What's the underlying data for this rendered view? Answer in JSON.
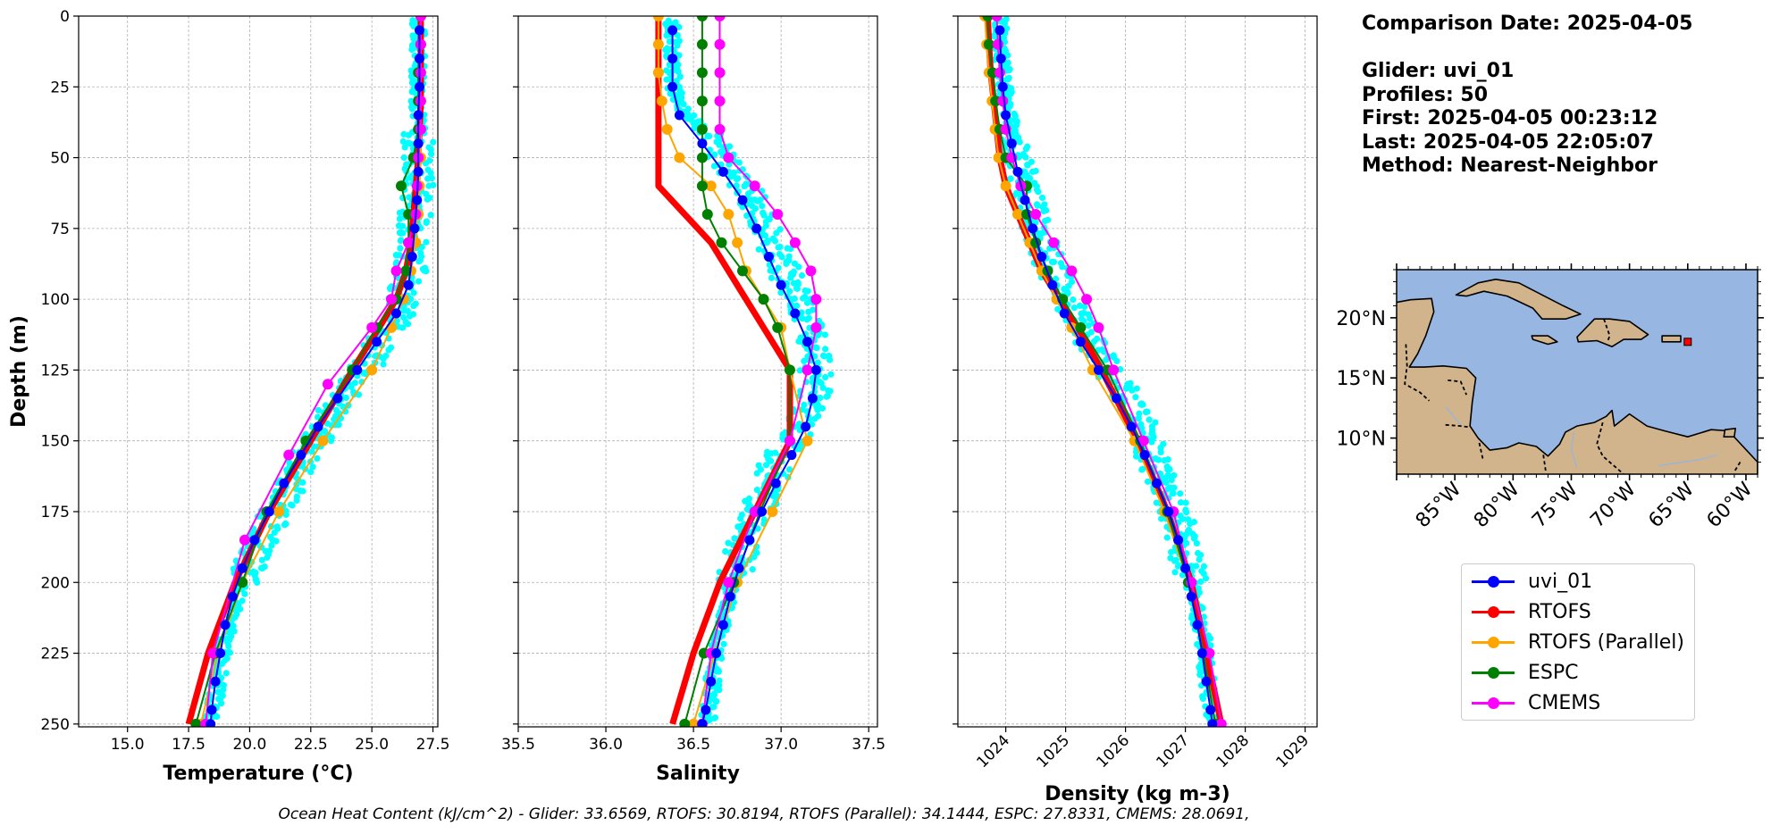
{
  "info": {
    "comparison": "Comparison Date: 2025-04-05",
    "glider": "Glider: uvi_01",
    "profiles": "Profiles: 50",
    "first": "First: 2025-04-05 00:23:12",
    "last": "Last: 2025-04-05 22:05:07",
    "method": "Method: Nearest-Neighbor"
  },
  "footer": "Ocean Heat Content (kJ/cm^2) - Glider: 33.6569,  RTOFS: 30.8194,  RTOFS (Parallel): 34.1444,  ESPC: 27.8331,  CMEMS: 28.0691,",
  "legend": [
    {
      "name": "uvi_01",
      "color": "#0000ff"
    },
    {
      "name": "RTOFS",
      "color": "#ff0000"
    },
    {
      "name": "RTOFS (Parallel)",
      "color": "#ffa500"
    },
    {
      "name": "ESPC",
      "color": "#008000"
    },
    {
      "name": "CMEMS",
      "color": "#ff00ff"
    }
  ],
  "colors": {
    "glider_scatter": "#00ffff",
    "ocean": "#98b6e2",
    "land": "#d2b48c"
  },
  "map": {
    "lat_ticks": [
      "10°N",
      "15°N",
      "20°N"
    ],
    "lon_ticks": [
      "85°W",
      "80°W",
      "75°W",
      "70°W",
      "65°W",
      "60°W"
    ],
    "extent": {
      "lon": [
        -90,
        -59
      ],
      "lat": [
        7,
        24
      ]
    },
    "glider_position": {
      "lon": -65,
      "lat": 18
    }
  },
  "chart_data": [
    {
      "type": "line",
      "xlabel": "Temperature (°C)",
      "ylabel": "Depth (m)",
      "xlim": [
        13,
        27.7
      ],
      "ylim": [
        251,
        0
      ],
      "xticks": [
        "15.0",
        "17.5",
        "20.0",
        "22.5",
        "25.0",
        "27.5"
      ],
      "xtick_values": [
        15,
        17.5,
        20,
        22.5,
        25,
        27.5
      ],
      "yticks": [
        "0",
        "25",
        "50",
        "75",
        "100",
        "125",
        "150",
        "175",
        "200",
        "225",
        "250"
      ],
      "ytick_values": [
        0,
        25,
        50,
        75,
        100,
        125,
        150,
        175,
        200,
        225,
        250
      ],
      "grid": true,
      "depth": [
        0,
        10,
        20,
        30,
        40,
        50,
        60,
        70,
        80,
        90,
        100,
        110,
        120,
        130,
        140,
        150,
        160,
        170,
        180,
        190,
        200,
        210,
        220,
        230,
        240,
        250
      ],
      "glider_scatter": [
        26.9,
        26.9,
        26.9,
        26.9,
        26.9,
        26.9,
        26.9,
        26.8,
        26.7,
        26.6,
        26.3,
        25.8,
        25.0,
        24.2,
        23.4,
        22.7,
        22.0,
        21.4,
        20.8,
        20.2,
        19.7,
        19.3,
        19.0,
        18.8,
        18.6,
        18.4
      ],
      "series": [
        {
          "name": "uvi_01",
          "depth": [
            5,
            15,
            25,
            35,
            45,
            55,
            65,
            75,
            85,
            95,
            105,
            115,
            125,
            135,
            145,
            155,
            165,
            175,
            185,
            195,
            205,
            215,
            225,
            235,
            245,
            250
          ],
          "values": [
            26.95,
            26.95,
            26.95,
            26.9,
            26.9,
            26.9,
            26.85,
            26.75,
            26.65,
            26.5,
            26.0,
            25.2,
            24.4,
            23.6,
            22.8,
            22.1,
            21.4,
            20.8,
            20.2,
            19.7,
            19.3,
            19.0,
            18.8,
            18.6,
            18.45,
            18.4
          ]
        },
        {
          "name": "RTOFS",
          "depth": [
            0,
            10,
            20,
            30,
            40,
            50,
            60,
            70,
            80,
            90,
            100,
            110,
            125,
            150,
            175,
            200,
            225,
            250
          ],
          "values": [
            27.0,
            27.0,
            27.0,
            27.0,
            26.95,
            26.9,
            26.8,
            26.7,
            26.6,
            26.4,
            26.0,
            25.3,
            24.2,
            22.5,
            20.8,
            19.4,
            18.3,
            17.5
          ]
        },
        {
          "name": "RTOFS (Parallel)",
          "depth": [
            0,
            10,
            20,
            30,
            40,
            50,
            60,
            70,
            80,
            90,
            100,
            110,
            125,
            150,
            175,
            200,
            225,
            250
          ],
          "values": [
            27.0,
            27.0,
            27.0,
            27.0,
            27.0,
            27.0,
            26.95,
            26.9,
            26.8,
            26.6,
            26.3,
            25.8,
            25.0,
            23.0,
            21.2,
            19.7,
            18.7,
            18.0
          ]
        },
        {
          "name": "ESPC",
          "depth": [
            0,
            10,
            20,
            30,
            40,
            50,
            60,
            70,
            80,
            90,
            100,
            110,
            125,
            150,
            175,
            200,
            225,
            250
          ],
          "values": [
            27.0,
            27.0,
            26.9,
            26.9,
            26.9,
            26.7,
            26.2,
            26.5,
            26.5,
            26.4,
            26.0,
            25.2,
            24.2,
            22.3,
            20.7,
            19.7,
            18.6,
            17.8
          ]
        },
        {
          "name": "CMEMS",
          "depth": [
            0,
            10,
            20,
            30,
            40,
            50,
            60,
            70,
            80,
            90,
            100,
            110,
            130,
            155,
            185,
            225,
            250
          ],
          "values": [
            27.0,
            27.0,
            27.0,
            27.0,
            27.0,
            26.9,
            26.85,
            26.8,
            26.5,
            26.0,
            25.8,
            25.0,
            23.2,
            21.6,
            19.8,
            18.5,
            18.2
          ]
        }
      ]
    },
    {
      "type": "line",
      "xlabel": "Salinity",
      "xlim": [
        35.5,
        37.55
      ],
      "ylim": [
        251,
        0
      ],
      "xticks": [
        "35.5",
        "36.0",
        "36.5",
        "37.0",
        "37.5"
      ],
      "xtick_values": [
        35.5,
        36.0,
        36.5,
        37.0,
        37.5
      ],
      "yticks": [
        "",
        "",
        "",
        "",
        "",
        "",
        "",
        "",
        "",
        "",
        ""
      ],
      "ytick_values": [
        0,
        25,
        50,
        75,
        100,
        125,
        150,
        175,
        200,
        225,
        250
      ],
      "grid": true,
      "depth": [
        0,
        10,
        20,
        30,
        40,
        50,
        60,
        70,
        80,
        90,
        100,
        110,
        120,
        130,
        140,
        150,
        160,
        170,
        180,
        190,
        200,
        210,
        220,
        230,
        240,
        250
      ],
      "glider_scatter": [
        36.38,
        36.38,
        36.38,
        36.4,
        36.55,
        36.68,
        36.8,
        36.88,
        36.95,
        37.02,
        37.08,
        37.15,
        37.2,
        37.2,
        37.15,
        37.05,
        36.96,
        36.9,
        36.83,
        36.77,
        36.72,
        36.68,
        36.65,
        36.62,
        36.6,
        36.58
      ],
      "series": [
        {
          "name": "uvi_01",
          "depth": [
            5,
            15,
            25,
            35,
            45,
            55,
            65,
            75,
            85,
            95,
            105,
            115,
            125,
            135,
            145,
            155,
            165,
            175,
            185,
            195,
            205,
            215,
            225,
            235,
            245,
            250
          ],
          "values": [
            36.38,
            36.38,
            36.38,
            36.42,
            36.55,
            36.67,
            36.78,
            36.86,
            36.93,
            37.0,
            37.08,
            37.15,
            37.2,
            37.18,
            37.14,
            37.06,
            36.97,
            36.89,
            36.82,
            36.76,
            36.71,
            36.67,
            36.63,
            36.6,
            36.57,
            36.55
          ]
        },
        {
          "name": "RTOFS",
          "depth": [
            0,
            10,
            20,
            30,
            40,
            50,
            60,
            70,
            80,
            90,
            100,
            110,
            125,
            150,
            175,
            200,
            225,
            250
          ],
          "values": [
            36.3,
            36.3,
            36.3,
            36.3,
            36.3,
            36.3,
            36.3,
            36.45,
            36.6,
            36.7,
            36.8,
            36.9,
            37.05,
            37.05,
            36.85,
            36.65,
            36.5,
            36.38
          ]
        },
        {
          "name": "RTOFS (Parallel)",
          "depth": [
            0,
            10,
            20,
            30,
            40,
            50,
            60,
            70,
            80,
            90,
            100,
            110,
            125,
            150,
            175,
            200,
            225,
            250
          ],
          "values": [
            36.3,
            36.3,
            36.3,
            36.32,
            36.35,
            36.42,
            36.6,
            36.7,
            36.75,
            36.8,
            36.9,
            37.0,
            37.05,
            37.15,
            36.95,
            36.75,
            36.62,
            36.5
          ]
        },
        {
          "name": "ESPC",
          "depth": [
            0,
            10,
            20,
            30,
            40,
            50,
            60,
            70,
            80,
            90,
            100,
            110,
            125,
            150,
            175,
            200,
            225,
            250
          ],
          "values": [
            36.55,
            36.55,
            36.55,
            36.55,
            36.55,
            36.55,
            36.55,
            36.58,
            36.66,
            36.78,
            36.9,
            36.98,
            37.05,
            37.05,
            36.88,
            36.73,
            36.56,
            36.45
          ]
        },
        {
          "name": "CMEMS",
          "depth": [
            0,
            10,
            20,
            30,
            40,
            50,
            60,
            70,
            80,
            90,
            100,
            110,
            125,
            150,
            175,
            200,
            225,
            250
          ],
          "values": [
            36.65,
            36.65,
            36.65,
            36.65,
            36.65,
            36.7,
            36.85,
            36.98,
            37.08,
            37.17,
            37.2,
            37.2,
            37.15,
            37.05,
            36.85,
            36.7,
            36.6,
            36.55
          ]
        }
      ]
    },
    {
      "type": "line",
      "xlabel": "Density (kg m-3)",
      "xlim": [
        1023.2,
        1029.2
      ],
      "ylim": [
        251,
        0
      ],
      "xticks": [
        "1024",
        "1025",
        "1026",
        "1027",
        "1028",
        "1029"
      ],
      "xtick_values": [
        1024,
        1025,
        1026,
        1027,
        1028,
        1029
      ],
      "yticks": [
        "",
        "",
        "",
        "",
        "",
        "",
        "",
        "",
        "",
        "",
        ""
      ],
      "ytick_values": [
        0,
        25,
        50,
        75,
        100,
        125,
        150,
        175,
        200,
        225,
        250
      ],
      "grid": true,
      "depth": [
        0,
        10,
        20,
        30,
        40,
        50,
        60,
        70,
        80,
        90,
        100,
        110,
        120,
        130,
        140,
        150,
        160,
        170,
        180,
        190,
        200,
        210,
        220,
        230,
        240,
        250
      ],
      "glider_scatter": [
        1023.9,
        1023.9,
        1023.95,
        1024.0,
        1024.1,
        1024.2,
        1024.3,
        1024.45,
        1024.6,
        1024.8,
        1025.0,
        1025.3,
        1025.6,
        1025.9,
        1026.15,
        1026.35,
        1026.55,
        1026.75,
        1026.9,
        1027.0,
        1027.1,
        1027.2,
        1027.3,
        1027.35,
        1027.4,
        1027.45
      ],
      "series": [
        {
          "name": "uvi_01",
          "depth": [
            5,
            15,
            25,
            35,
            45,
            55,
            65,
            75,
            85,
            95,
            105,
            115,
            125,
            135,
            145,
            155,
            165,
            175,
            185,
            195,
            205,
            215,
            225,
            235,
            245,
            250
          ],
          "values": [
            1023.9,
            1023.92,
            1023.95,
            1024.0,
            1024.1,
            1024.2,
            1024.32,
            1024.45,
            1024.6,
            1024.78,
            1024.98,
            1025.25,
            1025.55,
            1025.85,
            1026.1,
            1026.32,
            1026.52,
            1026.72,
            1026.88,
            1027.0,
            1027.1,
            1027.2,
            1027.28,
            1027.35,
            1027.42,
            1027.45
          ]
        },
        {
          "name": "RTOFS",
          "depth": [
            0,
            10,
            20,
            30,
            40,
            50,
            60,
            70,
            80,
            90,
            100,
            110,
            125,
            150,
            175,
            200,
            225,
            250
          ],
          "values": [
            1023.7,
            1023.72,
            1023.75,
            1023.8,
            1023.85,
            1023.9,
            1024.0,
            1024.2,
            1024.4,
            1024.6,
            1024.9,
            1025.2,
            1025.6,
            1026.2,
            1026.7,
            1027.1,
            1027.35,
            1027.6
          ]
        },
        {
          "name": "RTOFS (Parallel)",
          "depth": [
            0,
            10,
            20,
            30,
            40,
            50,
            60,
            70,
            80,
            90,
            100,
            110,
            125,
            150,
            175,
            200,
            225,
            250
          ],
          "values": [
            1023.65,
            1023.68,
            1023.72,
            1023.77,
            1023.82,
            1023.88,
            1024.0,
            1024.2,
            1024.4,
            1024.6,
            1024.85,
            1025.1,
            1025.45,
            1026.15,
            1026.65,
            1027.05,
            1027.3,
            1027.5
          ]
        },
        {
          "name": "ESPC",
          "depth": [
            0,
            10,
            20,
            30,
            40,
            50,
            60,
            70,
            80,
            90,
            100,
            110,
            125,
            150,
            175,
            200,
            225,
            250
          ],
          "values": [
            1023.7,
            1023.72,
            1023.78,
            1023.83,
            1023.9,
            1024.0,
            1024.35,
            1024.35,
            1024.5,
            1024.7,
            1024.95,
            1025.25,
            1025.7,
            1026.25,
            1026.7,
            1027.05,
            1027.3,
            1027.5
          ]
        },
        {
          "name": "CMEMS",
          "depth": [
            0,
            10,
            20,
            30,
            40,
            50,
            60,
            70,
            80,
            90,
            100,
            110,
            125,
            150,
            175,
            200,
            225,
            250
          ],
          "values": [
            1023.85,
            1023.87,
            1023.9,
            1023.95,
            1024.0,
            1024.1,
            1024.25,
            1024.5,
            1024.8,
            1025.1,
            1025.35,
            1025.55,
            1025.8,
            1026.3,
            1026.8,
            1027.1,
            1027.4,
            1027.6
          ]
        }
      ]
    }
  ]
}
